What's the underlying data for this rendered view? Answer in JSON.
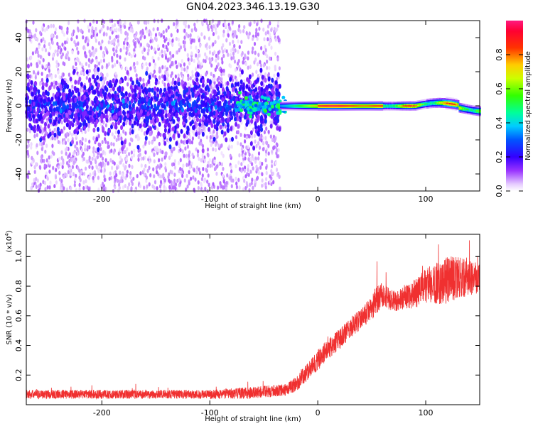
{
  "title": "GN04.2023.346.13.19.G30",
  "chart_data": [
    {
      "type": "heatmap",
      "xlabel": "Height of straight line (km)",
      "ylabel": "Frequency (Hz)",
      "xlim": [
        -270,
        150
      ],
      "ylim": [
        -50,
        50
      ],
      "xticks": [
        -200,
        -100,
        0,
        100
      ],
      "yticks": [
        -40,
        -20,
        0,
        20,
        40
      ],
      "colorbar": {
        "label": "Normalized spectral amplitude",
        "range": [
          0.0,
          1.0
        ],
        "ticks": [
          "0.0",
          "0.2",
          "0.4",
          "0.6",
          "0.8"
        ],
        "tick_values": [
          0.0,
          0.2,
          0.4,
          0.6,
          0.8
        ],
        "colormap": "rainbow (white-violet-blue-cyan-green-yellow-red-magenta)"
      },
      "features": {
        "noisy_region_x": [
          -270,
          -35
        ],
        "noise_band_core_halfwidth_hz": 8,
        "noise_spread_hz": 50,
        "signal_start_x": -35,
        "signal_line_freq_hz": 0,
        "signal_peak_x": [
          0,
          60
        ]
      },
      "grid": false
    },
    {
      "type": "line",
      "xlabel": "Height of straight line (km)",
      "ylabel": "SNR (10 * v/v)",
      "yscale_label": "(x10",
      "yscale_exponent": "4",
      "yscale_suffix": ")",
      "xlim": [
        -270,
        150
      ],
      "ylim": [
        0.0,
        1.15
      ],
      "xticks": [
        -200,
        -100,
        0,
        100
      ],
      "yticks": [
        "0.2",
        "0.4",
        "0.6",
        "0.8",
        "1.0"
      ],
      "ytick_values": [
        0.2,
        0.4,
        0.6,
        0.8,
        1.0
      ],
      "series": [
        {
          "color": "#f03030",
          "x": [
            -270,
            -220,
            -150,
            -100,
            -60,
            -30,
            -20,
            -10,
            0,
            10,
            20,
            30,
            40,
            50,
            55,
            60,
            70,
            80,
            90,
            100,
            110,
            120,
            130,
            140,
            150
          ],
          "y": [
            0.07,
            0.07,
            0.07,
            0.07,
            0.08,
            0.1,
            0.14,
            0.22,
            0.3,
            0.38,
            0.44,
            0.52,
            0.58,
            0.65,
            0.72,
            0.74,
            0.7,
            0.72,
            0.75,
            0.8,
            0.82,
            0.84,
            0.86,
            0.85,
            0.88
          ],
          "noise": [
            0.03,
            0.03,
            0.03,
            0.03,
            0.04,
            0.04,
            0.05,
            0.06,
            0.07,
            0.07,
            0.07,
            0.07,
            0.07,
            0.08,
            0.1,
            0.08,
            0.07,
            0.08,
            0.1,
            0.12,
            0.14,
            0.16,
            0.14,
            0.12,
            0.12
          ]
        }
      ],
      "grid": false
    }
  ]
}
